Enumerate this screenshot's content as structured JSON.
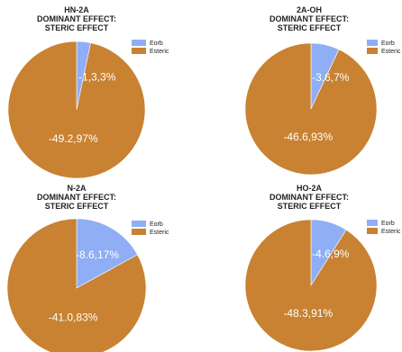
{
  "colors": {
    "eorb": "#8FAEF5",
    "esteric": "#C88232"
  },
  "chart_data": [
    {
      "type": "pie",
      "title_lines": [
        "HN-2A",
        "DOMINANT EFFECT:",
        "STERIC EFFECT"
      ],
      "legend": [
        "Eorb",
        "Esteric"
      ],
      "slices": [
        {
          "name": "Eorb",
          "value": 3.3,
          "label": "-1,3,3%"
        },
        {
          "name": "Esteric",
          "value": 97.0,
          "label": "-49.2,97%"
        }
      ]
    },
    {
      "type": "pie",
      "title_lines": [
        "2A-OH",
        "DOMINANT EFFECT:",
        "STERIC EFFECT"
      ],
      "legend": [
        "Eorb",
        "Esteric"
      ],
      "slices": [
        {
          "name": "Eorb",
          "value": 7.0,
          "label": "-3.6,7%"
        },
        {
          "name": "Esteric",
          "value": 93.0,
          "label": "-46.6,93%"
        }
      ]
    },
    {
      "type": "pie",
      "title_lines": [
        "N-2A",
        "DOMINANT EFFECT:",
        "STERIC EFFECT"
      ],
      "legend": [
        "Eorb",
        "Esteric"
      ],
      "slices": [
        {
          "name": "Eorb",
          "value": 17.0,
          "label": "-8.6,17%"
        },
        {
          "name": "Esteric",
          "value": 83.0,
          "label": "-41.0,83%"
        }
      ]
    },
    {
      "type": "pie",
      "title_lines": [
        "HO-2A",
        "DOMINANT EFFECT:",
        "STERIC EFFECT"
      ],
      "legend": [
        "Eorb",
        "Esteric"
      ],
      "slices": [
        {
          "name": "Eorb",
          "value": 9.0,
          "label": "-4.6,9%"
        },
        {
          "name": "Esteric",
          "value": 91.0,
          "label": "-48.3,91%"
        }
      ]
    }
  ]
}
